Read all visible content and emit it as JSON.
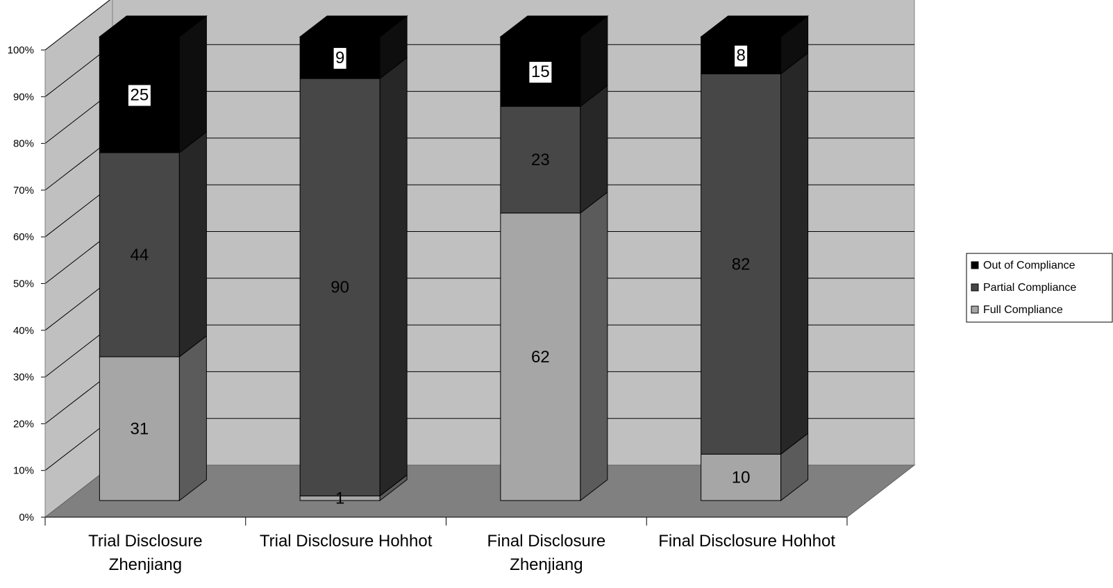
{
  "chart_data": {
    "type": "bar",
    "subtype": "stacked-percent-3d",
    "title": "",
    "xlabel": "",
    "ylabel": "",
    "ylim": [
      0,
      100
    ],
    "y_ticks": [
      "0%",
      "10%",
      "20%",
      "30%",
      "40%",
      "50%",
      "60%",
      "70%",
      "80%",
      "90%",
      "100%"
    ],
    "grid": true,
    "legend_position": "right",
    "categories": [
      [
        "Trial Disclosure",
        "Zhenjiang"
      ],
      [
        "Trial Disclosure Hohhot"
      ],
      [
        "Final Disclosure",
        "Zhenjiang"
      ],
      [
        "Final Disclosure Hohhot"
      ]
    ],
    "series": [
      {
        "name": "Full Compliance",
        "values": [
          31,
          1,
          62,
          10
        ],
        "color": "#a6a6a6"
      },
      {
        "name": "Partial Compliance",
        "values": [
          44,
          90,
          23,
          82
        ],
        "color": "#474747"
      },
      {
        "name": "Out of Compliance",
        "values": [
          25,
          9,
          15,
          8
        ],
        "color": "#000000"
      }
    ],
    "legend_order": [
      "Out of Compliance",
      "Partial Compliance",
      "Full Compliance"
    ],
    "colors": {
      "back_wall": "#c0c0c0",
      "side_wall": "#c0c0c0",
      "floor": "#808080"
    }
  }
}
